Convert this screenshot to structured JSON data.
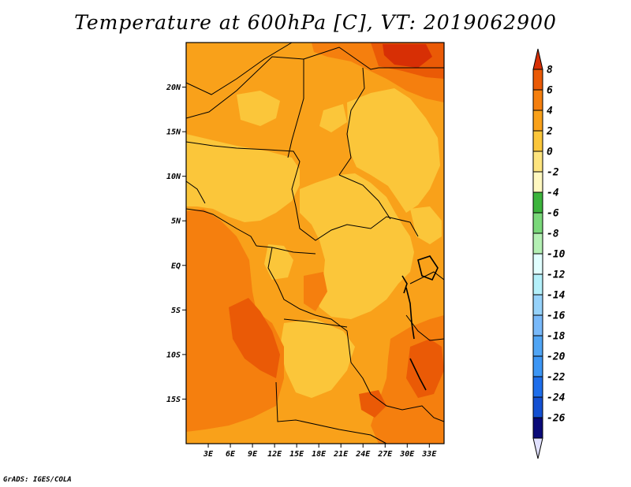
{
  "title": "Temperature at 600hPa [C], VT: 2019062900",
  "credit": "GrADS: IGES/COLA",
  "map": {
    "lon_range": [
      0,
      35
    ],
    "lat_range": [
      -20,
      25
    ],
    "lat_ticks": [
      {
        "value": 20,
        "label": "20N"
      },
      {
        "value": 15,
        "label": "15N"
      },
      {
        "value": 10,
        "label": "10N"
      },
      {
        "value": 5,
        "label": "5N"
      },
      {
        "value": 0,
        "label": "EQ"
      },
      {
        "value": -5,
        "label": "5S"
      },
      {
        "value": -10,
        "label": "10S"
      },
      {
        "value": -15,
        "label": "15S"
      }
    ],
    "lon_ticks": [
      {
        "value": 3,
        "label": "3E"
      },
      {
        "value": 6,
        "label": "6E"
      },
      {
        "value": 9,
        "label": "9E"
      },
      {
        "value": 12,
        "label": "12E"
      },
      {
        "value": 15,
        "label": "15E"
      },
      {
        "value": 18,
        "label": "18E"
      },
      {
        "value": 21,
        "label": "21E"
      },
      {
        "value": 24,
        "label": "24E"
      },
      {
        "value": 27,
        "label": "27E"
      },
      {
        "value": 30,
        "label": "30E"
      },
      {
        "value": 33,
        "label": "33E"
      }
    ]
  },
  "colorbar": {
    "levels": [
      "8",
      "6",
      "4",
      "2",
      "0",
      "-2",
      "-4",
      "-6",
      "-8",
      "-10",
      "-12",
      "-14",
      "-16",
      "-18",
      "-20",
      "-22",
      "-24",
      "-26"
    ],
    "colors": [
      "#d72f05",
      "#ea5a06",
      "#f57f0e",
      "#f9a11a",
      "#fbc63a",
      "#fde47e",
      "#fff8c0",
      "#3cb43c",
      "#7ad87a",
      "#b4f0b4",
      "#e1ffff",
      "#b4f0fa",
      "#96d2fa",
      "#78b9fa",
      "#50a5f5",
      "#3c96f5",
      "#1e6eeb",
      "#1450d2",
      "#0a0a78",
      "#e1e1ff"
    ]
  }
}
